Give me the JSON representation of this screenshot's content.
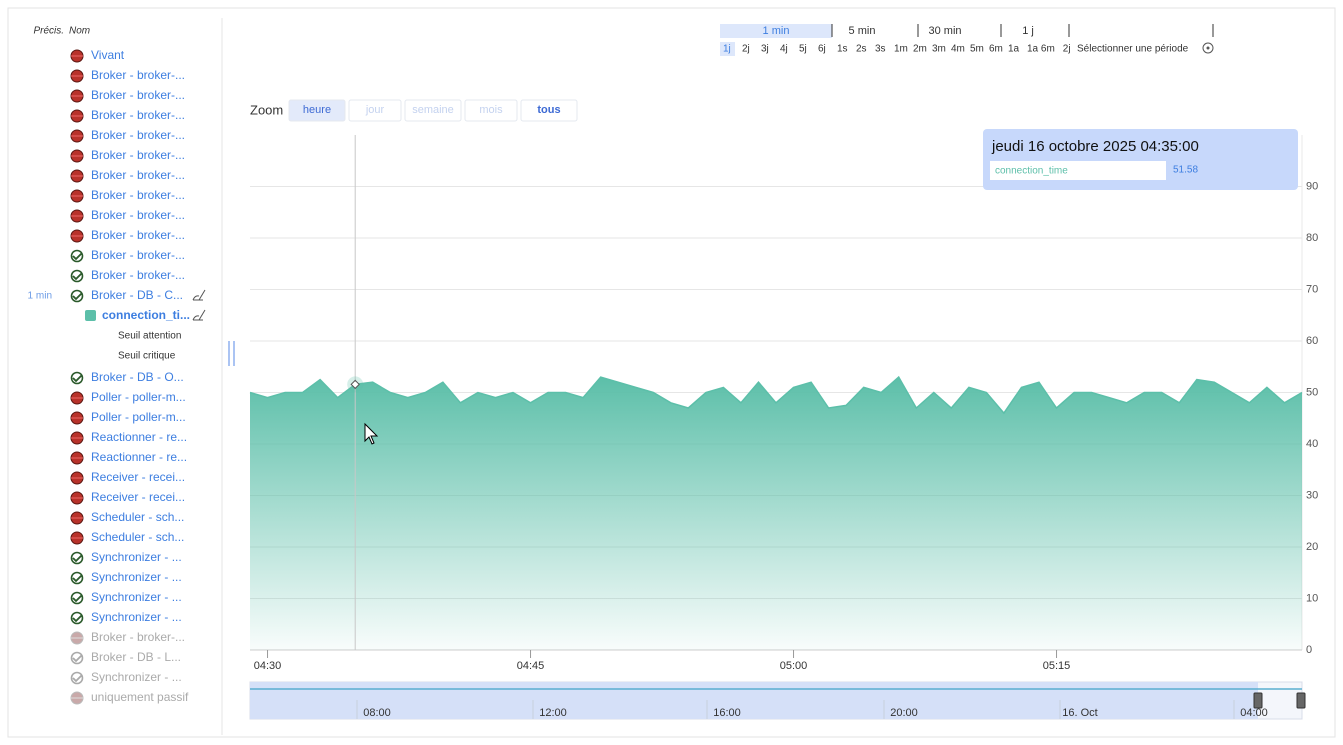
{
  "sidebar": {
    "headers": [
      "Précis.",
      "Nom"
    ],
    "items": [
      {
        "label": "Vivant",
        "icon": "critical"
      },
      {
        "label": "Broker - broker-...",
        "icon": "critical"
      },
      {
        "label": "Broker - broker-...",
        "icon": "critical"
      },
      {
        "label": "Broker - broker-...",
        "icon": "critical"
      },
      {
        "label": "Broker - broker-...",
        "icon": "critical"
      },
      {
        "label": "Broker - broker-...",
        "icon": "critical"
      },
      {
        "label": "Broker - broker-...",
        "icon": "critical"
      },
      {
        "label": "Broker - broker-...",
        "icon": "critical"
      },
      {
        "label": "Broker - broker-...",
        "icon": "critical"
      },
      {
        "label": "Broker - broker-...",
        "icon": "critical"
      },
      {
        "label": "Broker - broker-...",
        "icon": "ok"
      },
      {
        "label": "Broker - broker-...",
        "icon": "ok"
      },
      {
        "label": "Broker - DB - C...",
        "icon": "ok",
        "precision": "1 min"
      },
      {
        "label": "connection_ti...",
        "icon": "metric"
      },
      {
        "label": "Seuil attention",
        "icon": "threshold"
      },
      {
        "label": "Seuil critique",
        "icon": "threshold"
      },
      {
        "label": "Broker - DB - O...",
        "icon": "ok"
      },
      {
        "label": "Poller - poller-m...",
        "icon": "critical"
      },
      {
        "label": "Poller - poller-m...",
        "icon": "critical"
      },
      {
        "label": "Reactionner - re...",
        "icon": "critical"
      },
      {
        "label": "Reactionner - re...",
        "icon": "critical"
      },
      {
        "label": "Receiver - recei...",
        "icon": "critical"
      },
      {
        "label": "Receiver - recei...",
        "icon": "critical"
      },
      {
        "label": "Scheduler - sch...",
        "icon": "critical"
      },
      {
        "label": "Scheduler - sch...",
        "icon": "critical"
      },
      {
        "label": "Synchronizer - ...",
        "icon": "ok"
      },
      {
        "label": "Synchronizer - ...",
        "icon": "ok"
      },
      {
        "label": "Synchronizer - ...",
        "icon": "ok"
      },
      {
        "label": "Synchronizer - ...",
        "icon": "ok"
      },
      {
        "label": "Broker - broker-...",
        "icon": "critical-disabled"
      },
      {
        "label": "Broker - DB - L...",
        "icon": "ok-disabled"
      },
      {
        "label": "Synchronizer - ...",
        "icon": "ok-disabled"
      },
      {
        "label": "uniquement passif",
        "icon": "disabled"
      }
    ]
  },
  "periods": {
    "resolutions": [
      "1 min",
      "5 min",
      "30 min",
      "1 j"
    ],
    "ranges": [
      "1j",
      "2j",
      "3j",
      "4j",
      "5j",
      "6j",
      "1s",
      "2s",
      "3s",
      "1m",
      "2m",
      "3m",
      "4m",
      "5m",
      "6m",
      "1a",
      "1a 6m",
      "2j"
    ],
    "select": "Sélectionner une période"
  },
  "zoom": {
    "label": "Zoom",
    "buttons": [
      "heure",
      "jour",
      "semaine",
      "mois",
      "tous"
    ]
  },
  "chart_data": {
    "type": "area",
    "x": [
      "04:29",
      "04:30",
      "04:31",
      "04:32",
      "04:33",
      "04:34",
      "04:35",
      "04:36",
      "04:37",
      "04:38",
      "04:39",
      "04:40",
      "04:41",
      "04:42",
      "04:43",
      "04:44",
      "04:45",
      "04:46",
      "04:47",
      "04:48",
      "04:49",
      "04:50",
      "04:51",
      "04:52",
      "04:53",
      "04:54",
      "04:55",
      "04:56",
      "04:57",
      "04:58",
      "04:59",
      "05:00",
      "05:01",
      "05:02",
      "05:03",
      "05:04",
      "05:05",
      "05:06",
      "05:07",
      "05:08",
      "05:09",
      "05:10",
      "05:11",
      "05:12",
      "05:13",
      "05:14",
      "05:15",
      "05:16",
      "05:17",
      "05:18",
      "05:19",
      "05:20",
      "05:21",
      "05:22",
      "05:23",
      "05:24",
      "05:25",
      "05:26",
      "05:27",
      "05:28",
      "05:29"
    ],
    "series": [
      {
        "name": "connection_time",
        "color": "#5cbfa9",
        "values": [
          50,
          49,
          50,
          50,
          52.5,
          49,
          51.58,
          52,
          50,
          49,
          50,
          52,
          48,
          50,
          49,
          50,
          48,
          50,
          50,
          49,
          53,
          52,
          51,
          50,
          48,
          47,
          50,
          51,
          48,
          52,
          48,
          51,
          52,
          47,
          47.5,
          51,
          50,
          53,
          47,
          50,
          47,
          51,
          50,
          46,
          51,
          52,
          47,
          50,
          50,
          49,
          48,
          50,
          50,
          48,
          52.5,
          52,
          50,
          48,
          51,
          48,
          50
        ]
      }
    ],
    "xlim": [
      "04:29",
      "05:29"
    ],
    "xticks": [
      "04:30",
      "04:45",
      "05:00",
      "05:15"
    ],
    "ylim": [
      0,
      100
    ],
    "yticks": [
      0,
      10,
      20,
      30,
      40,
      50,
      60,
      70,
      80,
      90
    ],
    "y_axis_side": "right",
    "grid": true,
    "tooltip": {
      "title": "jeudi 16 octobre 2025 04:35:00",
      "x": "04:35",
      "value": 51.58
    }
  },
  "navigator": {
    "labels": [
      "08:00",
      "12:00",
      "16:00",
      "20:00",
      "16. Oct",
      "04:00"
    ]
  }
}
